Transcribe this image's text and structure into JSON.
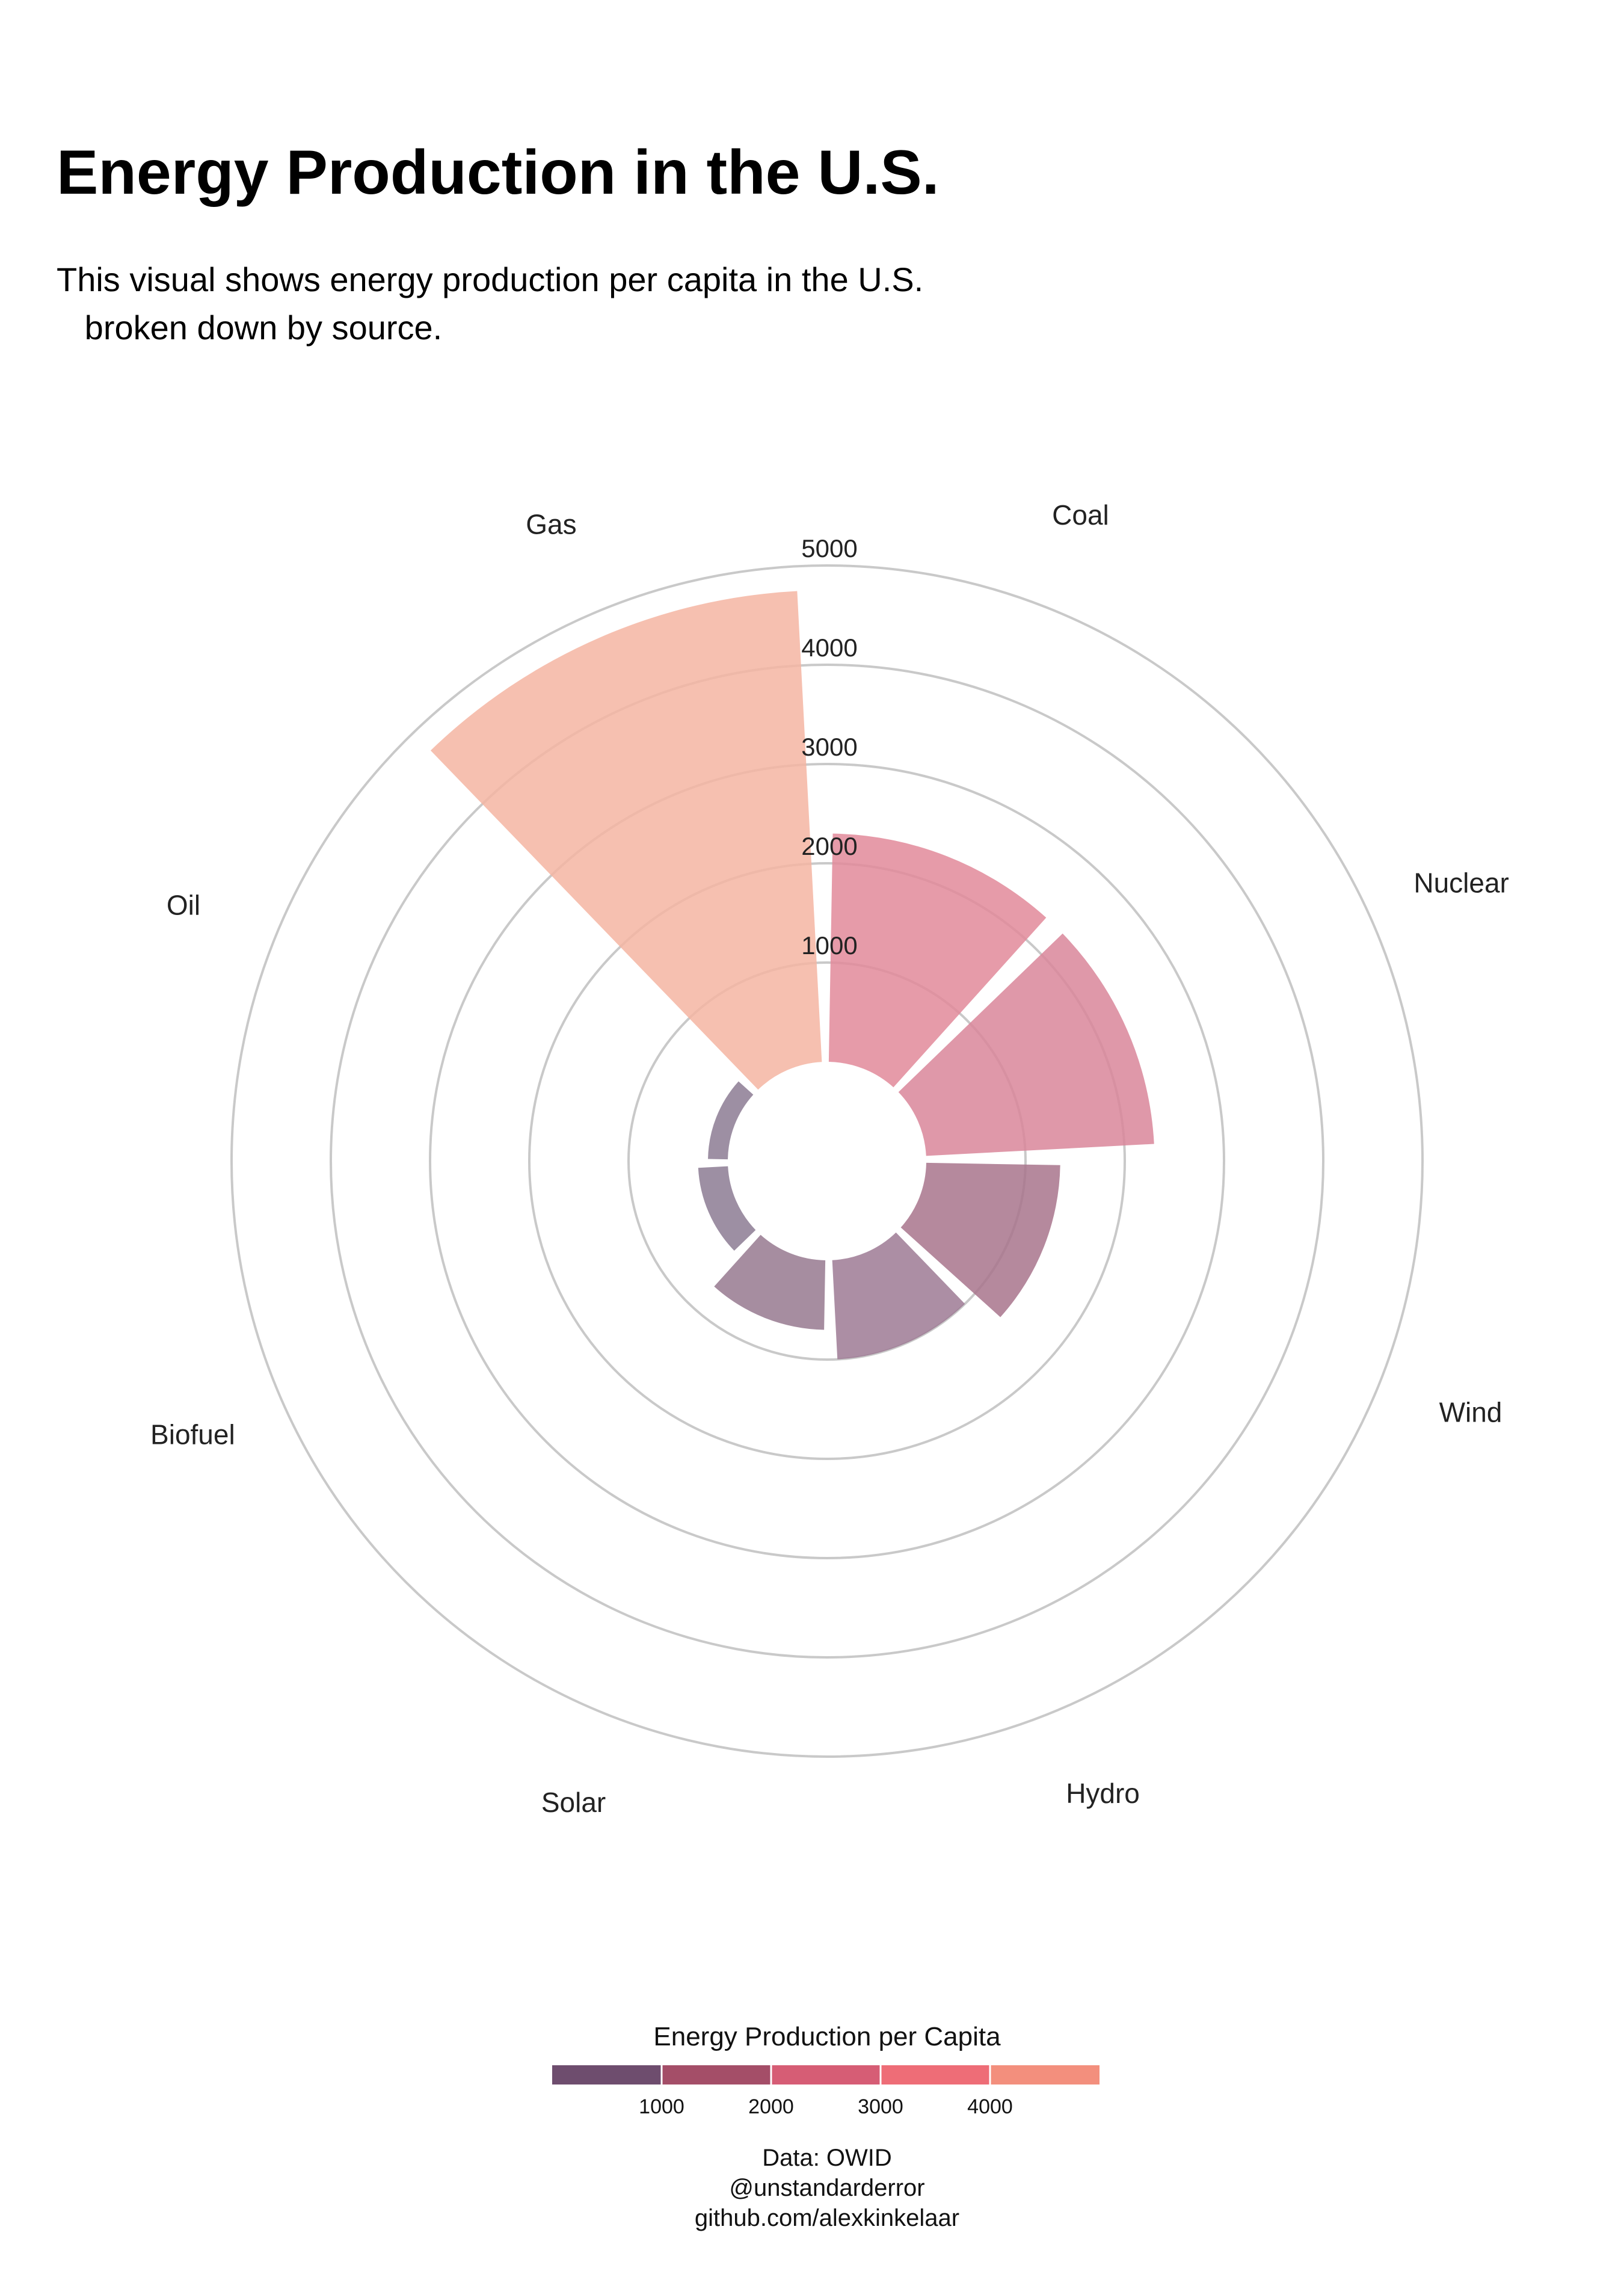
{
  "title": "Energy Production in the U.S.",
  "subtitle": "This visual shows energy production per capita in the U.S.\n   broken down by source.",
  "chart_data": {
    "type": "polar-bar",
    "categories": [
      "Gas",
      "Oil",
      "Biofuel",
      "Solar",
      "Hydro",
      "Wind",
      "Nuclear",
      "Coal"
    ],
    "values": [
      4750,
      200,
      300,
      700,
      1000,
      1350,
      2300,
      2300
    ],
    "colors": [
      "#f5b5a2",
      "#8c7b93",
      "#8c7b93",
      "#96798f",
      "#9e7a94",
      "#a8748c",
      "#d9869a",
      "#e2899a"
    ],
    "radial_ticks": [
      1000,
      2000,
      3000,
      4000,
      5000
    ],
    "rlim": [
      0,
      5000
    ],
    "grid": true,
    "legend": {
      "title": "Energy Production per Capita",
      "ticks": [
        1000,
        2000,
        3000,
        4000
      ],
      "colors": [
        "#6e4d6e",
        "#a44e68",
        "#d65d75",
        "#ee6d77",
        "#f38f7d"
      ],
      "placement": "bottom"
    },
    "caption": [
      "Data: OWID",
      "@unstandarderror",
      "github.com/alexkinkelaar"
    ]
  }
}
